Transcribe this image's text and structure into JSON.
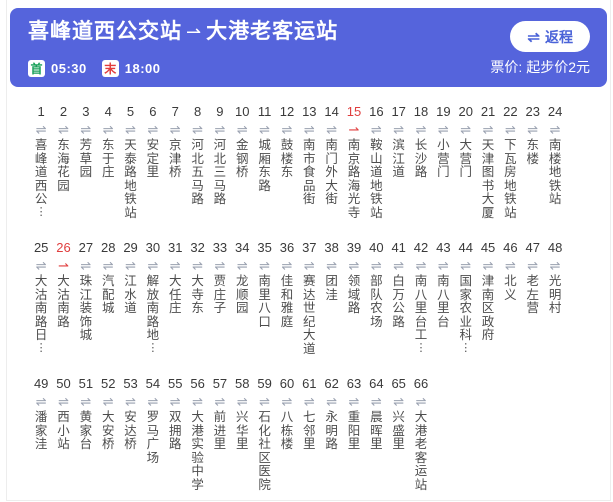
{
  "header": {
    "title_from": "喜峰道西公交站",
    "title_arrow": "⇀",
    "title_to": "大港老客运站",
    "return_icon": "⇌",
    "return_label": "返程",
    "first_label": "首",
    "first_time": "05:30",
    "last_label": "末",
    "last_time": "18:00",
    "fare": "票价: 起步价2元"
  },
  "colors": {
    "header_bg": "#5564dc",
    "accent_blue": "#4a63d8",
    "first_green": "#18a058",
    "last_red": "#e23c3c",
    "oneway_red": "#e03e3e",
    "icon_gray": "#9aa1b0"
  },
  "stops": {
    "icon_two_way": "⇌",
    "icon_one_way": "⇀",
    "ellipsis": "⋮",
    "rows": [
      [
        {
          "num": 1,
          "name": "喜峰道西公",
          "ellipsis": true
        },
        {
          "num": 2,
          "name": "东海花园"
        },
        {
          "num": 3,
          "name": "芳草园"
        },
        {
          "num": 4,
          "name": "东于庄"
        },
        {
          "num": 5,
          "name": "天泰路地铁站"
        },
        {
          "num": 6,
          "name": "安定里"
        },
        {
          "num": 7,
          "name": "京津桥"
        },
        {
          "num": 8,
          "name": "河北五马路"
        },
        {
          "num": 9,
          "name": "河北三马路"
        },
        {
          "num": 10,
          "name": "金钢桥"
        },
        {
          "num": 11,
          "name": "城厢东路"
        },
        {
          "num": 12,
          "name": "鼓楼东"
        },
        {
          "num": 13,
          "name": "南市食品街"
        },
        {
          "num": 14,
          "name": "南门外大街"
        },
        {
          "num": 15,
          "name": "南京路海光寺",
          "red": true
        },
        {
          "num": 16,
          "name": "鞍山道地铁站"
        },
        {
          "num": 17,
          "name": "滨江道"
        },
        {
          "num": 18,
          "name": "长沙路"
        },
        {
          "num": 19,
          "name": "小营门"
        },
        {
          "num": 20,
          "name": "大营门"
        },
        {
          "num": 21,
          "name": "天津图书大厦"
        },
        {
          "num": 22,
          "name": "下瓦房地铁站"
        },
        {
          "num": 23,
          "name": "东楼"
        },
        {
          "num": 24,
          "name": "南楼地铁站"
        }
      ],
      [
        {
          "num": 25,
          "name": "大沽南路日",
          "ellipsis": true
        },
        {
          "num": 26,
          "name": "大沽南路",
          "red": true
        },
        {
          "num": 27,
          "name": "珠江装饰城"
        },
        {
          "num": 28,
          "name": "汽配城"
        },
        {
          "num": 29,
          "name": "江水道"
        },
        {
          "num": 30,
          "name": "解放南路地",
          "ellipsis": true
        },
        {
          "num": 31,
          "name": "大任庄"
        },
        {
          "num": 32,
          "name": "大寺东"
        },
        {
          "num": 33,
          "name": "贾庄子"
        },
        {
          "num": 34,
          "name": "龙顺园"
        },
        {
          "num": 35,
          "name": "南里八口"
        },
        {
          "num": 36,
          "name": "佳和雅庭"
        },
        {
          "num": 37,
          "name": "赛达世纪大道"
        },
        {
          "num": 38,
          "name": "团洼"
        },
        {
          "num": 39,
          "name": "领域路"
        },
        {
          "num": 40,
          "name": "部队农场"
        },
        {
          "num": 41,
          "name": "白万公路"
        },
        {
          "num": 42,
          "name": "南八里台工",
          "ellipsis": true
        },
        {
          "num": 43,
          "name": "南八里台"
        },
        {
          "num": 44,
          "name": "国家农业科",
          "ellipsis": true
        },
        {
          "num": 45,
          "name": "津南区政府"
        },
        {
          "num": 46,
          "name": "北义"
        },
        {
          "num": 47,
          "name": "老左营"
        },
        {
          "num": 48,
          "name": "光明村"
        }
      ],
      [
        {
          "num": 49,
          "name": "潘家洼"
        },
        {
          "num": 50,
          "name": "西小站"
        },
        {
          "num": 51,
          "name": "黄家台"
        },
        {
          "num": 52,
          "name": "大安桥"
        },
        {
          "num": 53,
          "name": "安达桥"
        },
        {
          "num": 54,
          "name": "罗马广场"
        },
        {
          "num": 55,
          "name": "双拥路"
        },
        {
          "num": 56,
          "name": "大港实验中学"
        },
        {
          "num": 57,
          "name": "前进里"
        },
        {
          "num": 58,
          "name": "兴华里"
        },
        {
          "num": 59,
          "name": "石化社区医院"
        },
        {
          "num": 60,
          "name": "八栋楼"
        },
        {
          "num": 61,
          "name": "七邻里"
        },
        {
          "num": 62,
          "name": "永明路"
        },
        {
          "num": 63,
          "name": "重阳里"
        },
        {
          "num": 64,
          "name": "晨晖里"
        },
        {
          "num": 65,
          "name": "兴盛里"
        },
        {
          "num": 66,
          "name": "大港老客运站"
        }
      ]
    ]
  }
}
